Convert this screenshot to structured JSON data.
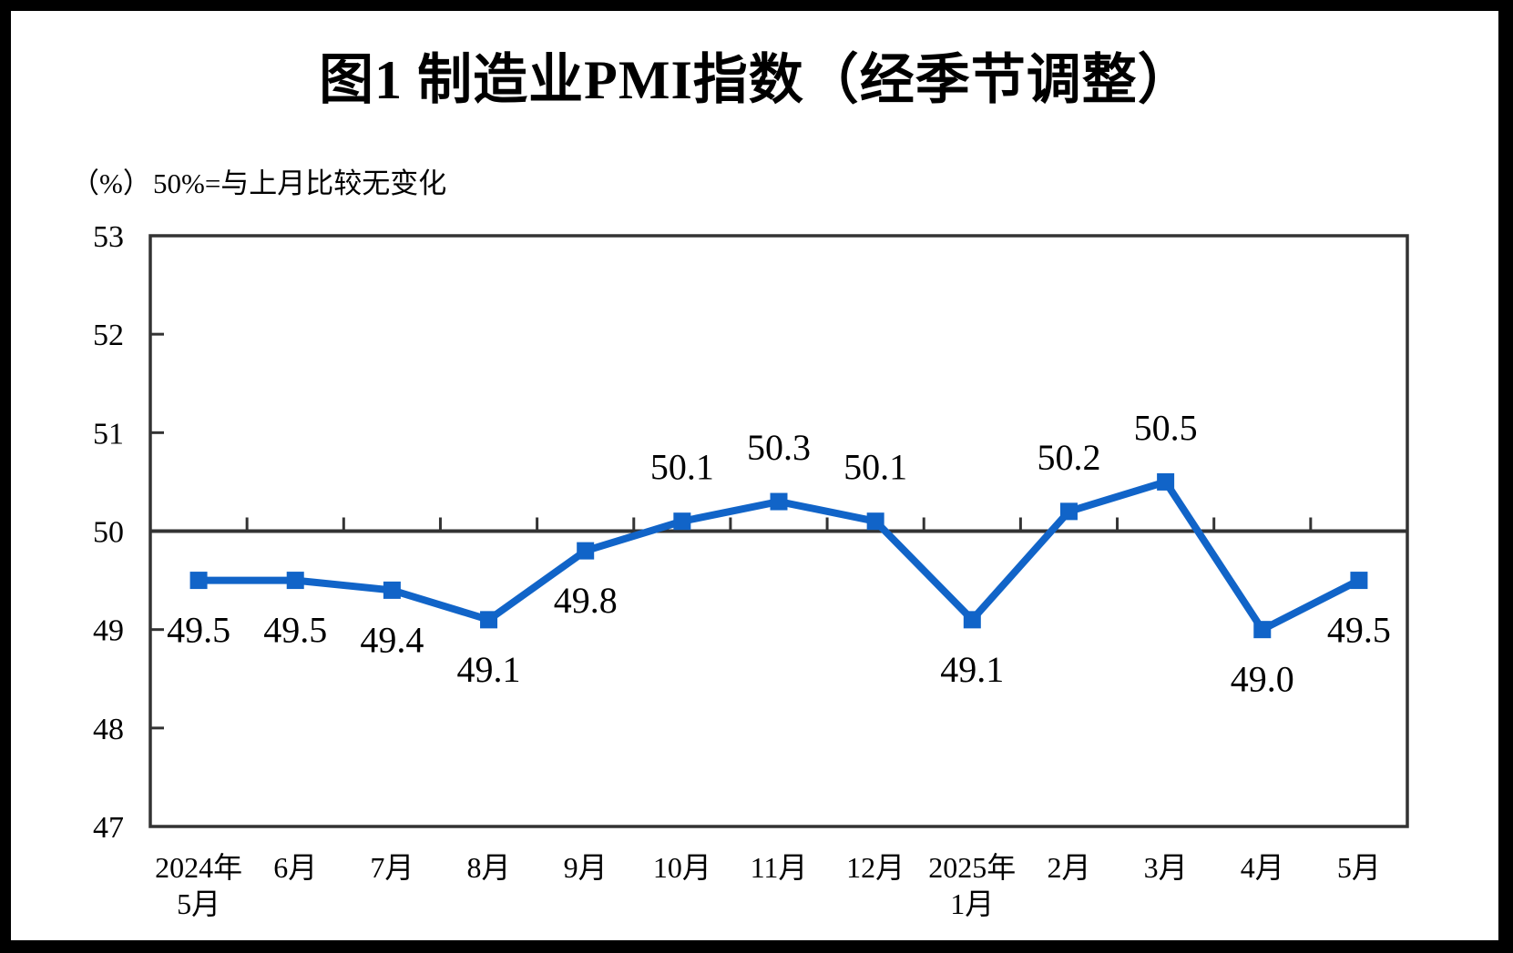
{
  "chart_data": {
    "type": "line",
    "title": "图1  制造业PMI指数（经季节调整）",
    "unit_label": "（%）",
    "annotation": "50%=与上月比较无变化",
    "categories": [
      "2024年5月",
      "6月",
      "7月",
      "8月",
      "9月",
      "10月",
      "11月",
      "12月",
      "2025年1月",
      "2月",
      "3月",
      "4月",
      "5月"
    ],
    "x_tick_labels": [
      {
        "line1": "2024年",
        "line2": "5月"
      },
      {
        "line1": "6月",
        "line2": ""
      },
      {
        "line1": "7月",
        "line2": ""
      },
      {
        "line1": "8月",
        "line2": ""
      },
      {
        "line1": "9月",
        "line2": ""
      },
      {
        "line1": "10月",
        "line2": ""
      },
      {
        "line1": "11月",
        "line2": ""
      },
      {
        "line1": "12月",
        "line2": ""
      },
      {
        "line1": "2025年",
        "line2": "1月"
      },
      {
        "line1": "2月",
        "line2": ""
      },
      {
        "line1": "3月",
        "line2": ""
      },
      {
        "line1": "4月",
        "line2": ""
      },
      {
        "line1": "5月",
        "line2": ""
      }
    ],
    "series": [
      {
        "name": "制造业PMI指数",
        "color": "#1164C8",
        "marker": "square",
        "values": [
          49.5,
          49.5,
          49.4,
          49.1,
          49.8,
          50.1,
          50.3,
          50.1,
          49.1,
          50.2,
          50.5,
          49.0,
          49.5
        ],
        "point_labels": [
          "49.5",
          "49.5",
          "49.4",
          "49.1",
          "49.8",
          "50.1",
          "50.3",
          "50.1",
          "49.1",
          "50.2",
          "50.5",
          "49.0",
          "49.5"
        ]
      }
    ],
    "ylim": [
      47,
      53
    ],
    "yticks": [
      53,
      52,
      51,
      50,
      49,
      48,
      47
    ],
    "reference_line": {
      "value": 50,
      "meaning": "50%=与上月比较无变化"
    },
    "layout": {
      "grid": false,
      "legend": "none",
      "label_above_threshold": 50,
      "axis_color": "#333333",
      "text_color": "#000000",
      "background": "#ffffff",
      "frame_color": "#000000"
    }
  }
}
